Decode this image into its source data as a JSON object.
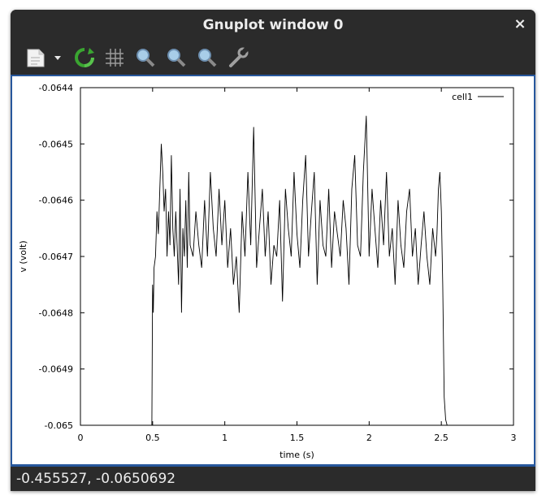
{
  "window": {
    "title": "Gnuplot window 0",
    "close_glyph": "×"
  },
  "toolbar": {
    "items": [
      {
        "name": "export-icon",
        "tooltip": ""
      },
      {
        "name": "dropdown-arrow-icon"
      },
      {
        "name": "replot-icon"
      },
      {
        "name": "grid-icon"
      },
      {
        "name": "zoom-previous-icon"
      },
      {
        "name": "zoom-next-icon"
      },
      {
        "name": "autoscale-icon"
      },
      {
        "name": "settings-wrench-icon"
      }
    ]
  },
  "status": {
    "coordinates": "-0.455527, -0.0650692"
  },
  "chart_data": {
    "type": "line",
    "xlabel": "time (s)",
    "ylabel": "v (volt)",
    "xlim": [
      0,
      3
    ],
    "ylim": [
      -0.065,
      -0.0644
    ],
    "x_ticks": [
      0,
      0.5,
      1,
      1.5,
      2,
      2.5,
      3
    ],
    "x_tick_labels": [
      "0",
      "0.5",
      "1",
      "1.5",
      "2",
      "2.5",
      "3"
    ],
    "y_ticks": [
      -0.065,
      -0.0649,
      -0.0648,
      -0.0647,
      -0.0646,
      -0.0645,
      -0.0644
    ],
    "y_tick_labels": [
      "-0.065",
      "-0.0649",
      "-0.0648",
      "-0.0647",
      "-0.0646",
      "-0.0645",
      "-0.0644"
    ],
    "legend": {
      "position": "top-right",
      "entries": [
        "cell1"
      ]
    },
    "series": [
      {
        "name": "cell1",
        "x": [
          0,
          0.49,
          0.495,
          0.5,
          0.505,
          0.51,
          0.52,
          0.53,
          0.54,
          0.55,
          0.56,
          0.57,
          0.58,
          0.59,
          0.6,
          0.61,
          0.62,
          0.63,
          0.64,
          0.65,
          0.66,
          0.67,
          0.68,
          0.69,
          0.7,
          0.71,
          0.72,
          0.73,
          0.74,
          0.75,
          0.76,
          0.78,
          0.8,
          0.82,
          0.84,
          0.86,
          0.88,
          0.9,
          0.92,
          0.94,
          0.96,
          0.98,
          1.0,
          1.02,
          1.04,
          1.06,
          1.08,
          1.1,
          1.12,
          1.14,
          1.16,
          1.18,
          1.2,
          1.22,
          1.24,
          1.26,
          1.28,
          1.3,
          1.32,
          1.34,
          1.36,
          1.38,
          1.4,
          1.42,
          1.44,
          1.46,
          1.48,
          1.5,
          1.52,
          1.54,
          1.56,
          1.58,
          1.6,
          1.62,
          1.64,
          1.66,
          1.68,
          1.7,
          1.72,
          1.74,
          1.76,
          1.78,
          1.8,
          1.82,
          1.84,
          1.86,
          1.88,
          1.9,
          1.92,
          1.94,
          1.96,
          1.98,
          2.0,
          2.02,
          2.04,
          2.06,
          2.08,
          2.1,
          2.12,
          2.14,
          2.16,
          2.18,
          2.2,
          2.22,
          2.24,
          2.26,
          2.28,
          2.3,
          2.32,
          2.34,
          2.36,
          2.38,
          2.4,
          2.42,
          2.44,
          2.46,
          2.47,
          2.48,
          2.49,
          2.5,
          2.51,
          2.52,
          2.53,
          2.54,
          2.55,
          2.56,
          2.57,
          2.58,
          2.6,
          2.62,
          2.65,
          2.7,
          3.0
        ],
        "y": [
          -0.065,
          -0.065,
          -0.065,
          -0.06475,
          -0.0648,
          -0.06472,
          -0.0647,
          -0.06462,
          -0.06466,
          -0.06458,
          -0.0645,
          -0.06455,
          -0.06462,
          -0.06458,
          -0.0647,
          -0.06462,
          -0.06468,
          -0.06452,
          -0.06465,
          -0.0647,
          -0.06462,
          -0.06468,
          -0.06475,
          -0.06458,
          -0.0648,
          -0.06465,
          -0.0647,
          -0.0646,
          -0.06472,
          -0.06455,
          -0.06468,
          -0.0647,
          -0.06462,
          -0.06468,
          -0.06472,
          -0.0646,
          -0.0647,
          -0.06455,
          -0.06465,
          -0.0647,
          -0.06458,
          -0.06468,
          -0.0646,
          -0.06472,
          -0.06465,
          -0.06475,
          -0.0647,
          -0.0648,
          -0.06462,
          -0.0647,
          -0.06455,
          -0.06468,
          -0.06447,
          -0.06472,
          -0.06465,
          -0.06458,
          -0.0647,
          -0.06462,
          -0.06475,
          -0.06468,
          -0.0647,
          -0.0646,
          -0.06478,
          -0.06458,
          -0.06465,
          -0.0647,
          -0.06455,
          -0.06466,
          -0.06472,
          -0.0646,
          -0.06452,
          -0.0647,
          -0.06462,
          -0.06455,
          -0.06475,
          -0.0646,
          -0.06468,
          -0.0647,
          -0.06458,
          -0.06472,
          -0.06462,
          -0.06466,
          -0.0647,
          -0.0646,
          -0.06465,
          -0.06475,
          -0.06458,
          -0.06452,
          -0.06468,
          -0.0647,
          -0.06455,
          -0.06445,
          -0.0647,
          -0.06458,
          -0.06465,
          -0.06472,
          -0.0646,
          -0.06468,
          -0.06455,
          -0.0647,
          -0.06465,
          -0.06475,
          -0.0646,
          -0.06468,
          -0.06472,
          -0.06462,
          -0.06458,
          -0.0647,
          -0.06465,
          -0.06475,
          -0.06468,
          -0.06462,
          -0.0647,
          -0.06475,
          -0.06465,
          -0.0647,
          -0.06466,
          -0.06458,
          -0.06455,
          -0.06462,
          -0.06475,
          -0.06495,
          -0.06499,
          -0.065,
          -0.065,
          -0.065,
          -0.065,
          -0.065,
          -0.065,
          -0.065,
          -0.065,
          -0.065,
          -0.065
        ]
      }
    ]
  }
}
